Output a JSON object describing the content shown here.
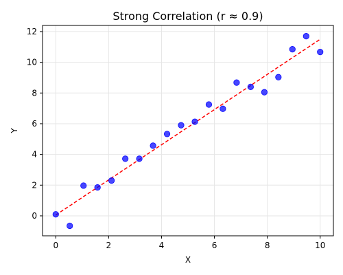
{
  "chart_data": {
    "type": "scatter",
    "title": "Strong Correlation (r ≈ 0.9)",
    "xlabel": "X",
    "ylabel": "Y",
    "xlim": [
      -0.5,
      10.5
    ],
    "ylim": [
      -1.3,
      12.4
    ],
    "xticks": [
      0,
      2,
      4,
      6,
      8,
      10
    ],
    "yticks": [
      0,
      2,
      4,
      6,
      8,
      10,
      12
    ],
    "grid": true,
    "colors": {
      "points": "#0000ff",
      "trend": "#ff0000"
    },
    "series": [
      {
        "type": "scatter",
        "x": [
          0,
          0.53,
          1.05,
          1.58,
          2.11,
          2.63,
          3.16,
          3.68,
          4.21,
          4.74,
          5.26,
          5.79,
          6.32,
          6.84,
          7.37,
          7.89,
          8.42,
          8.95,
          9.47,
          10
        ],
        "y": [
          0.1,
          -0.65,
          1.97,
          1.85,
          2.3,
          3.72,
          3.72,
          4.57,
          5.33,
          5.9,
          6.13,
          7.25,
          6.97,
          8.68,
          8.4,
          8.05,
          9.03,
          10.85,
          11.7,
          10.67
        ]
      },
      {
        "type": "line",
        "style": "dashed",
        "x": [
          0,
          10
        ],
        "y": [
          0.05,
          11.5
        ]
      }
    ]
  }
}
